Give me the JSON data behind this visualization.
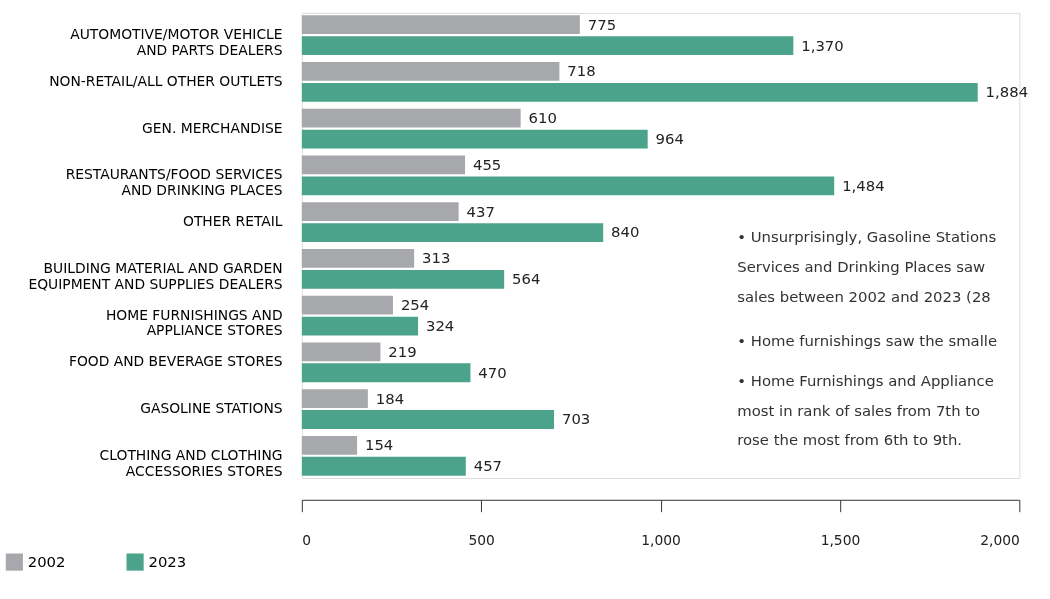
{
  "chart_data": {
    "type": "bar",
    "orientation": "horizontal",
    "categories": [
      "AUTOMOTIVE/MOTOR VEHICLE\nAND PARTS DEALERS",
      "NON-RETAIL/ALL OTHER OUTLETS",
      "GEN. MERCHANDISE",
      "RESTAURANTS/FOOD SERVICES\nAND DRINKING PLACES",
      "OTHER RETAIL",
      "BUILDING MATERIAL AND GARDEN\nEQUIPMENT AND SUPPLIES DEALERS",
      "HOME FURNISHINGS AND\nAPPLIANCE STORES",
      "FOOD AND BEVERAGE STORES",
      "GASOLINE STATIONS",
      "CLOTHING AND CLOTHING\nACCESSORIES STORES"
    ],
    "series": [
      {
        "name": "2002",
        "color": "#a7a8ab",
        "values": [
          775,
          718,
          610,
          455,
          437,
          313,
          254,
          219,
          184,
          154
        ],
        "value_labels": [
          "775",
          "718",
          "610",
          "455",
          "437",
          "313",
          "254",
          "219",
          "184",
          "154"
        ]
      },
      {
        "name": "2023",
        "color": "#4aa38a",
        "values": [
          1370,
          1884,
          964,
          1484,
          840,
          564,
          324,
          470,
          703,
          457
        ],
        "value_labels": [
          "1,370",
          "1,884",
          "964",
          "1,484",
          "840",
          "564",
          "324",
          "470",
          "703",
          "457"
        ]
      }
    ],
    "xlim": [
      0,
      2000
    ],
    "xticks": [
      {
        "value": 0,
        "label": "0"
      },
      {
        "value": 500,
        "label": "500"
      },
      {
        "value": 1000,
        "label": "1,000"
      },
      {
        "value": 1500,
        "label": "1,500"
      },
      {
        "value": 2000,
        "label": "2,000"
      }
    ],
    "grid": false,
    "legend": "bottom left",
    "annotations": [
      "• Unsurprisingly, Gasoline Stations\n   Services and Drinking Places saw\n   sales between 2002 and 2023 (28",
      "• Home furnishings saw the smalle",
      "• Home Furnishings and Appliance\n   most in rank of sales from 7th to\n   rose the most from 6th to 9th."
    ]
  }
}
